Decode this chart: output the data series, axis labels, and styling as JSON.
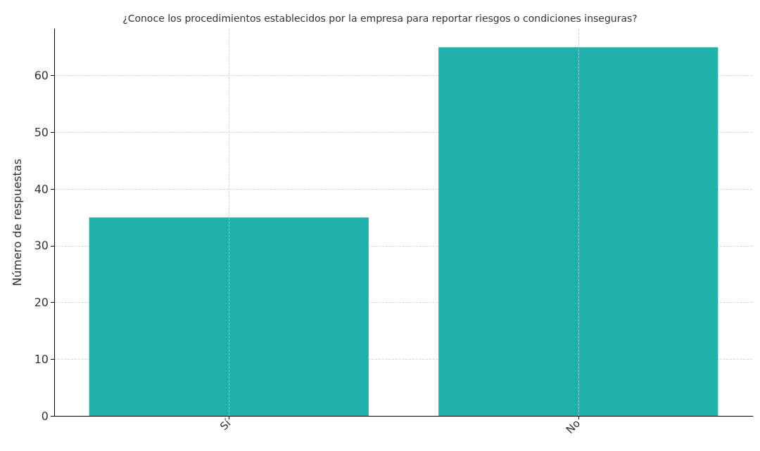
{
  "chart_data": {
    "type": "bar",
    "title": "¿Conoce los procedimientos establecidos por la empresa para reportar riesgos o condiciones inseguras?",
    "ylabel": "Número de respuestas",
    "categories": [
      "Sí",
      "No"
    ],
    "values": [
      35,
      65
    ],
    "color": "#20b2aa",
    "ylim": [
      0,
      68.25
    ],
    "yticks": [
      0,
      10,
      20,
      30,
      40,
      50,
      60
    ],
    "grid": true
  }
}
